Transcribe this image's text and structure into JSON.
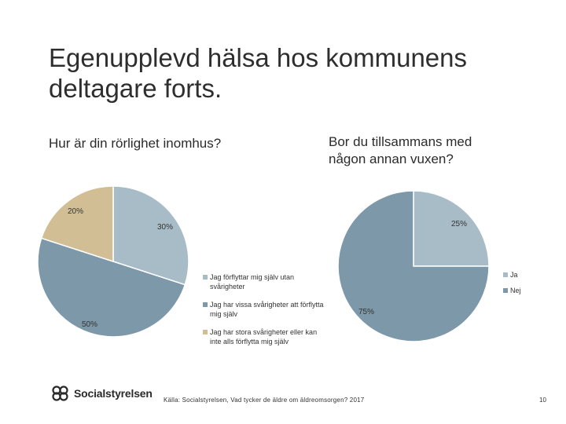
{
  "slide": {
    "title": "Egenupplevd hälsa hos kommunens deltagare forts.",
    "source": "Källa: Socialstyrelsen, Vad tycker de äldre om äldreomsorgen? 2017",
    "page_number": "10",
    "logo_text": "Socialstyrelsen"
  },
  "chart_data": [
    {
      "type": "pie",
      "title": "Hur är din rörlighet inomhus?",
      "categories": [
        "Jag förflyttar mig själv utan svårigheter",
        "Jag har vissa svårigheter att förflytta mig själv",
        "Jag har stora svårigheter eller kan inte alls förflytta mig själv"
      ],
      "values": [
        30,
        50,
        20
      ],
      "labels": [
        "30%",
        "50%",
        "20%"
      ],
      "colors": [
        "#a8bcc8",
        "#7d98a8",
        "#d1be95"
      ],
      "legend_position": "right"
    },
    {
      "type": "pie",
      "title": "Bor du tillsammans med någon annan vuxen?",
      "categories": [
        "Ja",
        "Nej"
      ],
      "values": [
        25,
        75
      ],
      "labels": [
        "25%",
        "75%"
      ],
      "colors": [
        "#a8bcc8",
        "#7d98a8"
      ],
      "legend_position": "right"
    }
  ]
}
